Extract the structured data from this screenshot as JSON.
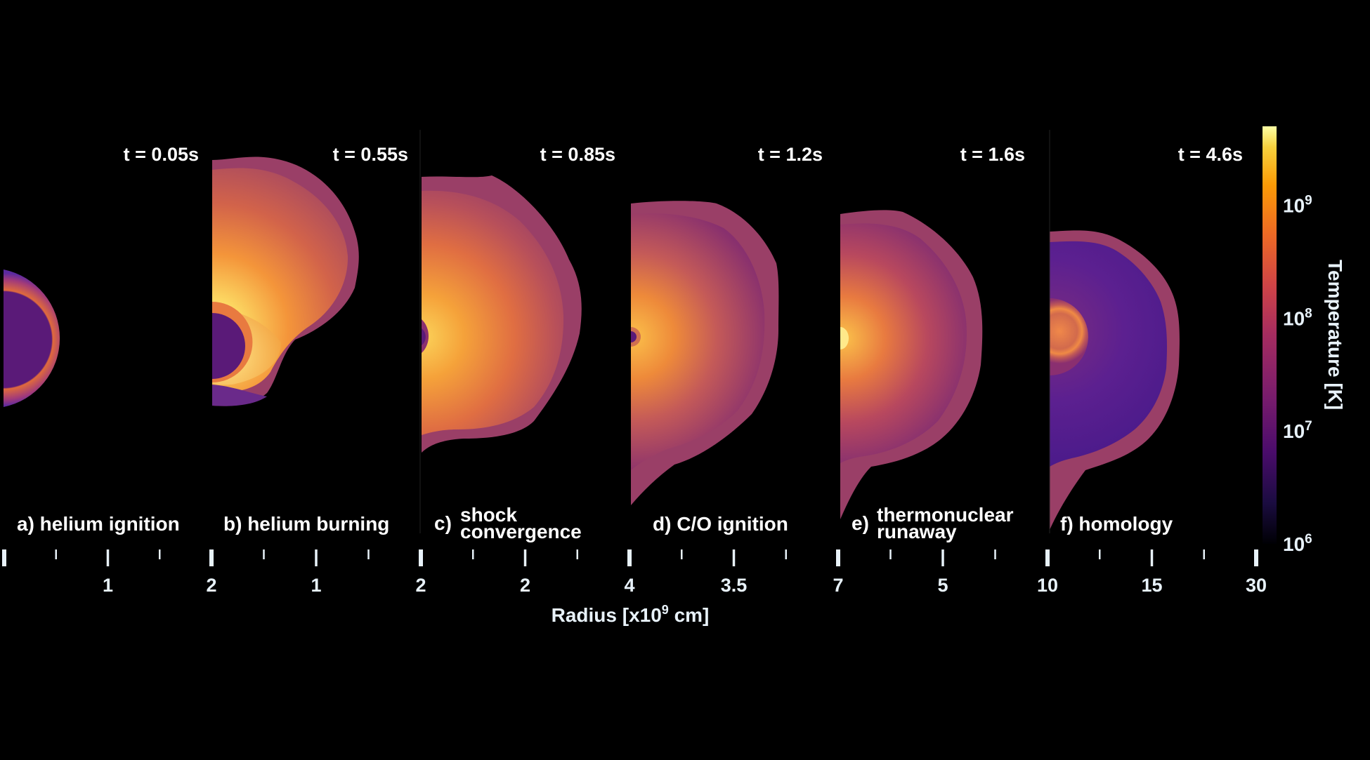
{
  "panels": [
    {
      "time": "t = 0.05s",
      "label_lines": [
        "a) helium ignition"
      ],
      "ticks": [
        "",
        "",
        "1",
        "",
        "2"
      ]
    },
    {
      "time": "t = 0.55s",
      "label_lines": [
        "b) helium burning"
      ],
      "ticks": [
        "",
        "",
        "1",
        "",
        "2"
      ]
    },
    {
      "time": "t = 0.85s",
      "label_prefix": "c)",
      "label_lines": [
        "shock",
        "convergence"
      ],
      "ticks": [
        "",
        "",
        "2",
        "",
        "4"
      ]
    },
    {
      "time": "t = 1.2s",
      "label_lines": [
        "d) C/O ignition"
      ],
      "ticks": [
        "",
        "",
        "3.5",
        "",
        "7"
      ]
    },
    {
      "time": "t = 1.6s",
      "label_prefix": "e)",
      "label_lines": [
        "thermonuclear",
        "runaway"
      ],
      "ticks": [
        "",
        "",
        "5",
        "",
        "10"
      ]
    },
    {
      "time": "t = 4.6s",
      "label_lines": [
        "f) homology"
      ],
      "ticks": [
        "",
        "",
        "15",
        "",
        "30"
      ]
    }
  ],
  "x_axis": {
    "title_pre": "Radius [x10",
    "title_sup": "9",
    "title_post": " cm]",
    "start_tick": ""
  },
  "colorbar": {
    "title": "Temperature [K]",
    "colormap": "inferno",
    "range_log10": [
      6,
      9.7
    ],
    "ticks": [
      {
        "base": "10",
        "exp": "9",
        "log10": 9
      },
      {
        "base": "10",
        "exp": "8",
        "log10": 8
      },
      {
        "base": "10",
        "exp": "7",
        "log10": 7
      },
      {
        "base": "10",
        "exp": "6",
        "log10": 6
      }
    ]
  },
  "colors": {
    "background": "#000000",
    "axis": "#e8f2fa",
    "text": "#ffffff"
  }
}
